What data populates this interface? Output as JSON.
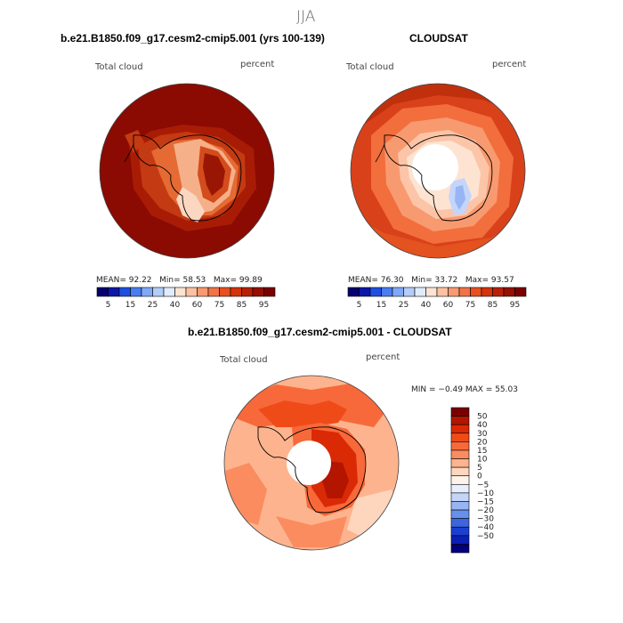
{
  "figure_title": "JJA",
  "panels": [
    {
      "title": "b.e21.B1850.f09_g17.cesm2-cmip5.001 (yrs 100-139)",
      "left_label": "Total cloud",
      "right_label": "percent",
      "stats": {
        "mean_label": "MEAN=",
        "mean": "92.22",
        "min_label": "Min=",
        "min": "58.53",
        "max_label": "Max=",
        "max": "99.89"
      }
    },
    {
      "title": "CLOUDSAT",
      "left_label": "Total cloud",
      "right_label": "percent",
      "stats": {
        "mean_label": "MEAN=",
        "mean": "76.30",
        "min_label": "Min=",
        "min": "33.72",
        "max_label": "Max=",
        "max": "93.57"
      }
    },
    {
      "title": "b.e21.B1850.f09_g17.cesm2-cmip5.001 - CLOUDSAT",
      "left_label": "Total cloud",
      "right_label": "percent",
      "stats_line": "MIN =  −0.49  MAX =  55.03"
    }
  ],
  "abs_colorbar": {
    "colors": [
      "#08006e",
      "#0c17a8",
      "#1f4fe0",
      "#4a7df0",
      "#7fa9f6",
      "#b4cdf8",
      "#e1ecfb",
      "#fde4d2",
      "#fbc1a1",
      "#f79a70",
      "#f17347",
      "#e7501f",
      "#d4330c",
      "#b82005",
      "#941002",
      "#7a0000"
    ],
    "tick_labels": [
      "5",
      "15",
      "25",
      "40",
      "60",
      "75",
      "85",
      "95"
    ]
  },
  "diff_colorbar": {
    "colors": [
      "#7a0000",
      "#b31500",
      "#da2a05",
      "#ef4b18",
      "#f7693a",
      "#fb8c60",
      "#fdb48e",
      "#fdd6bd",
      "#fff2ea",
      "#e7eefc",
      "#c4d5f9",
      "#97b4f4",
      "#6690ec",
      "#3c66e0",
      "#1b3fd0",
      "#0b1fb3",
      "#03007b"
    ],
    "tick_labels": [
      "50",
      "40",
      "30",
      "20",
      "15",
      "10",
      "5",
      "0",
      "−5",
      "−10",
      "−15",
      "−20",
      "−30",
      "−40",
      "−50"
    ]
  }
}
